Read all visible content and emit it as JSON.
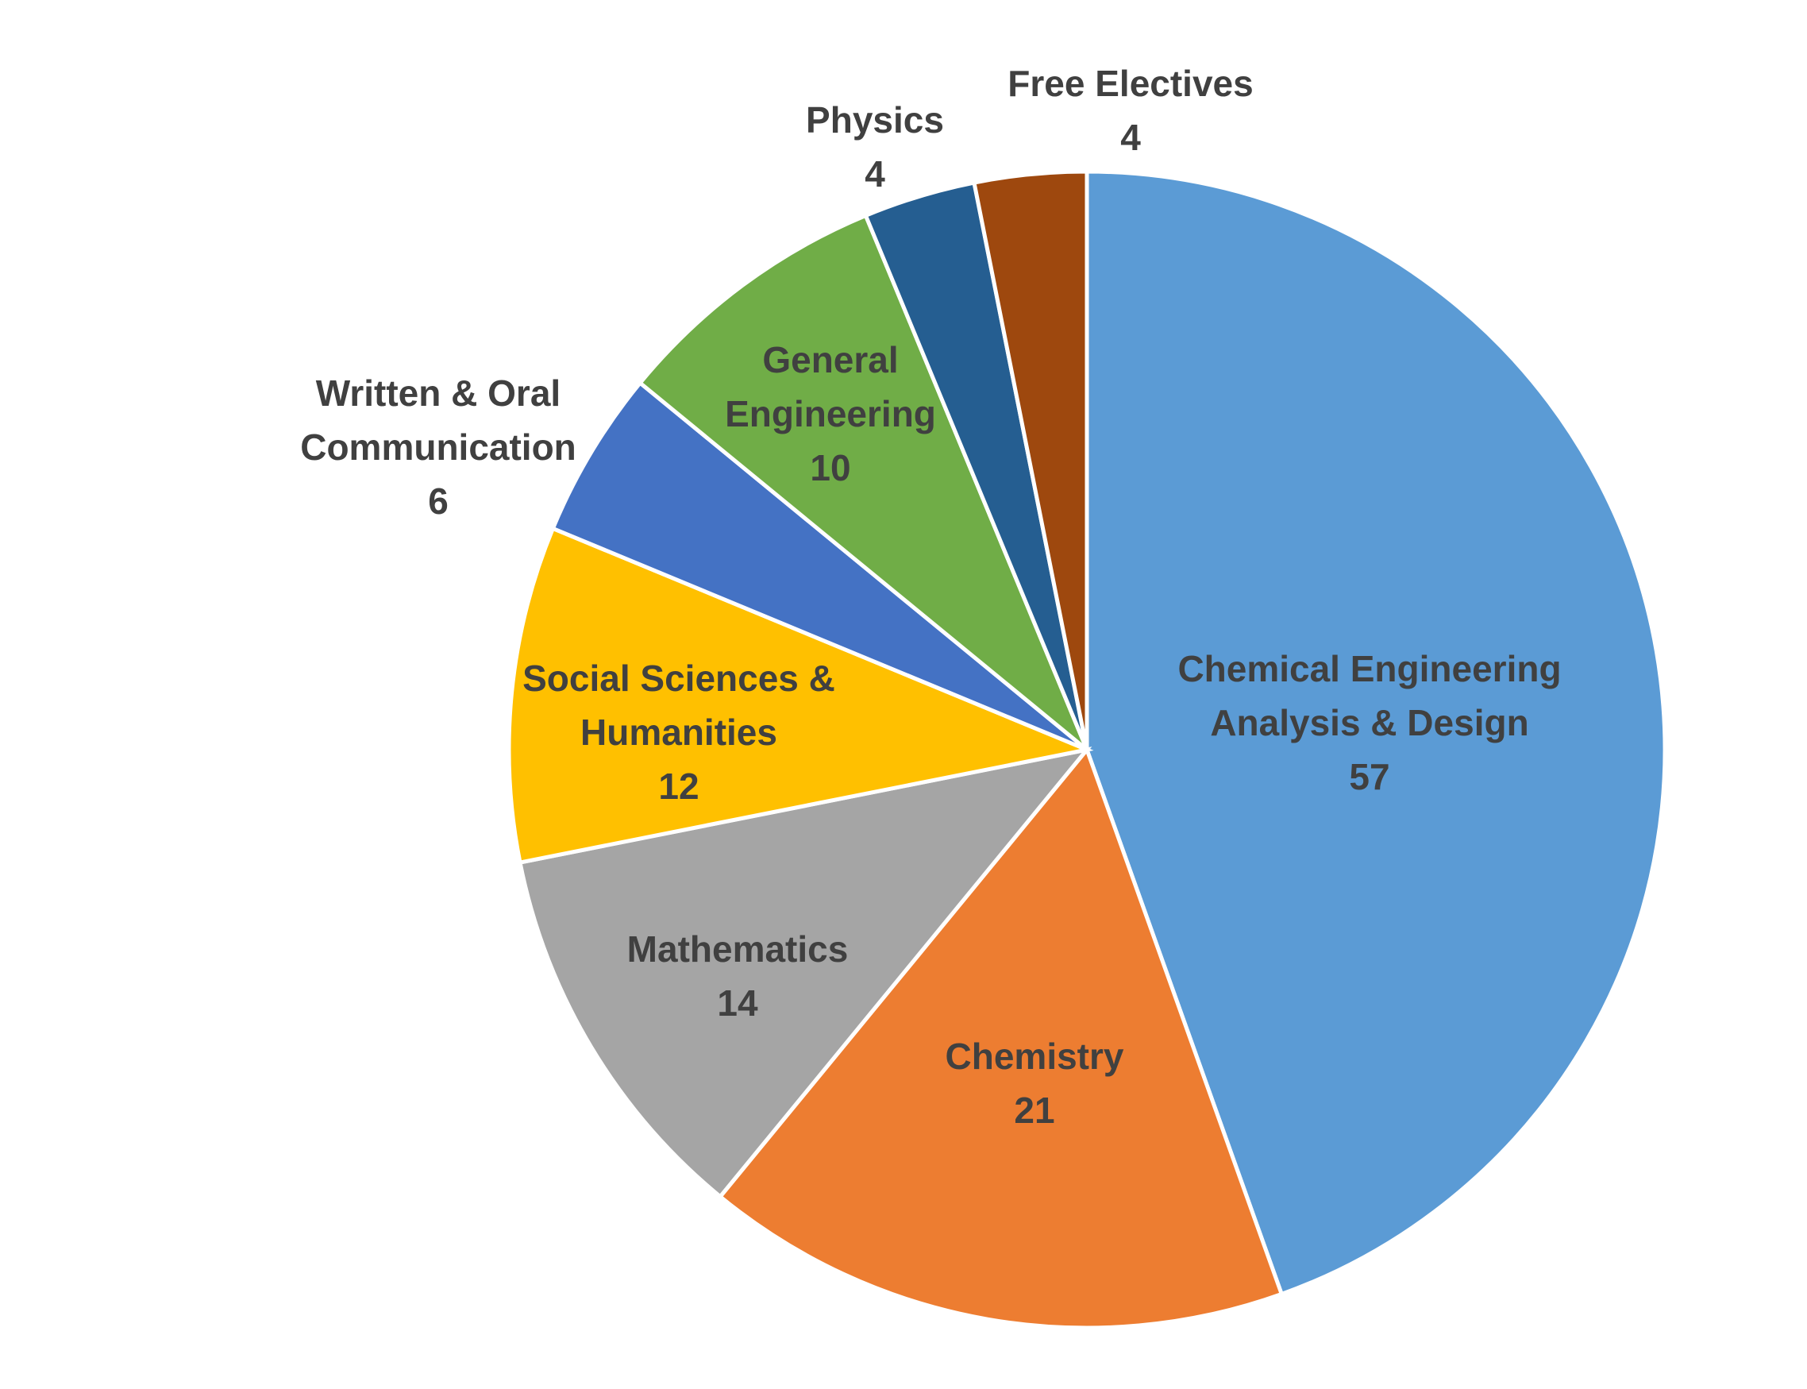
{
  "chart_data": {
    "type": "pie",
    "categories": [
      "Chemical Engineering Analysis & Design",
      "Chemistry",
      "Mathematics",
      "Social Sciences & Humanities",
      "Written & Oral Communication",
      "General Engineering",
      "Physics",
      "Free Electives"
    ],
    "values": [
      57,
      21,
      14,
      12,
      6,
      10,
      4,
      4
    ],
    "colors": [
      "#5b9bd5",
      "#ed7d31",
      "#a5a5a5",
      "#ffc000",
      "#4472c4",
      "#70ad47",
      "#255e91",
      "#9e480e"
    ]
  }
}
